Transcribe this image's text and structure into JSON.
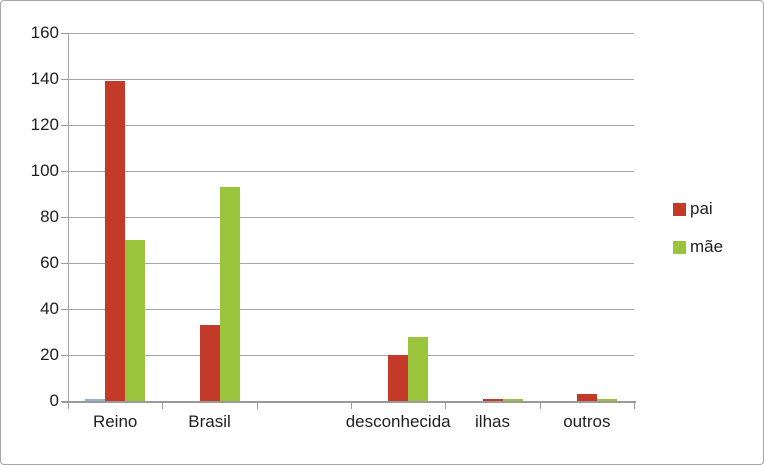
{
  "chart_data": {
    "type": "bar",
    "title": "",
    "xlabel": "",
    "ylabel": "",
    "categories": [
      "Reino",
      "Brasil",
      "",
      "desconhecida",
      "ilhas",
      "outros"
    ],
    "series": [
      {
        "name": "",
        "in_legend": false,
        "color": "#95b3d7",
        "values": [
          1,
          0,
          0,
          0,
          0,
          0
        ]
      },
      {
        "name": "pai",
        "in_legend": true,
        "color": "#c33b28",
        "values": [
          139,
          33,
          0,
          20,
          1,
          3
        ]
      },
      {
        "name": "mãe",
        "in_legend": true,
        "color": "#9ac43c",
        "values": [
          70,
          93,
          0,
          28,
          1,
          1
        ]
      }
    ],
    "ylim": [
      0,
      160
    ],
    "ytick_step": 20,
    "ytick_labels": [
      "0",
      "20",
      "40",
      "60",
      "80",
      "100",
      "120",
      "140",
      "160"
    ],
    "grid": true,
    "legend_position": "right-middle"
  },
  "styles": {
    "gridline_color": "#a5a5ac",
    "axis_color": "#9a9a9a",
    "text_color": "#1f1f1f",
    "background": "#ffffff",
    "border_color": "#a6a6a6"
  }
}
